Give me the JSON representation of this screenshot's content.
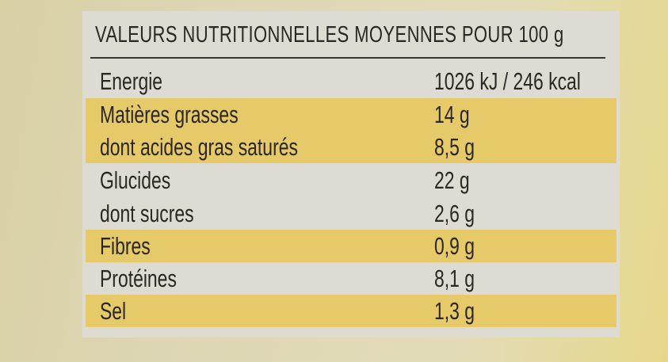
{
  "header": {
    "title": "VALEURS NUTRITIONNELLES MOYENNES POUR 100 g"
  },
  "table": {
    "rows": [
      [
        "Energie",
        "1026 kJ / 246 kcal"
      ],
      [
        "Matières grasses",
        "14 g"
      ],
      [
        "dont acides gras saturés",
        "8,5 g"
      ],
      [
        "Glucides",
        "22 g"
      ],
      [
        "dont sucres",
        "2,6 g"
      ],
      [
        "Fibres",
        "0,9 g"
      ],
      [
        "Protéines",
        "8,1 g"
      ],
      [
        "Sel",
        "1,3 g"
      ]
    ]
  }
}
